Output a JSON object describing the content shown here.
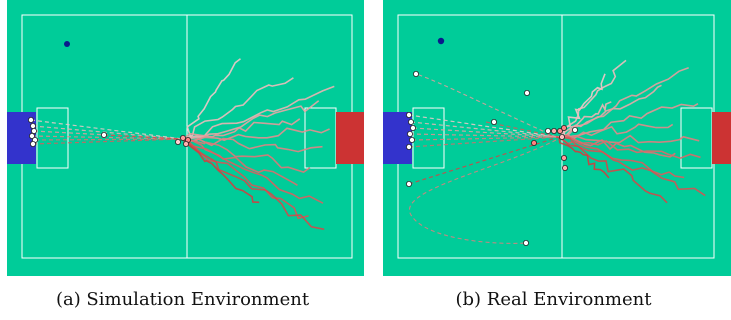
{
  "figure": {
    "colors": {
      "field": "#00cc99",
      "lines": "#ffffff",
      "own_goal": "#3333cc",
      "opponent_goal": "#cc3333",
      "target_marker": "#0a1a8c",
      "trail_light": "#f2c9c9",
      "trail_dark": "#cc3333",
      "robot_fill": "#ffffff",
      "robot_stroke": "#222222"
    },
    "panels": [
      {
        "id": "a",
        "caption": "(a) Simulation Environment"
      },
      {
        "id": "b",
        "caption": "(b) Real Environment"
      }
    ]
  }
}
